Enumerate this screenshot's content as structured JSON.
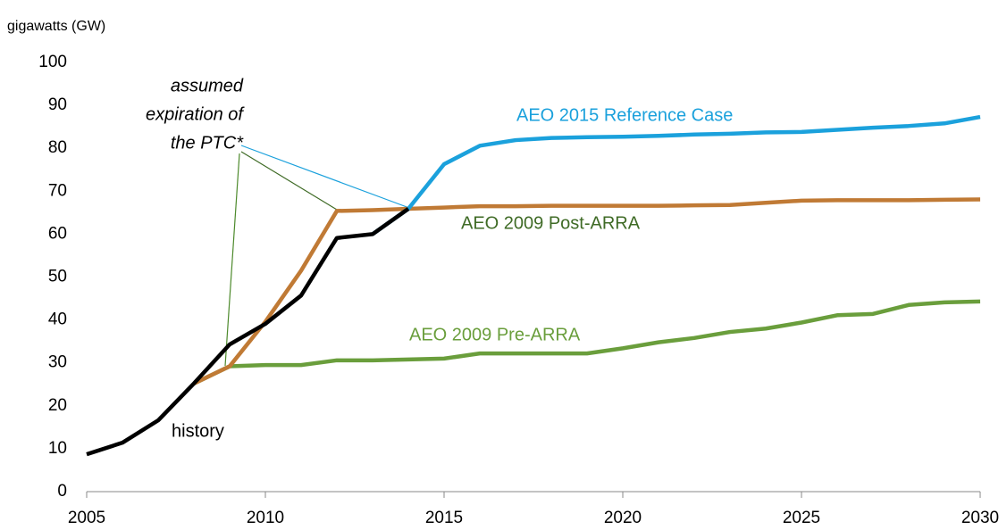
{
  "chart_data": {
    "type": "line",
    "y_axis_label": "gigawatts (GW)",
    "annotation": [
      "assumed",
      "expiration of",
      "the PTC*"
    ],
    "history_label": "history",
    "xlim": [
      2005,
      2030
    ],
    "xticks": [
      2005,
      2010,
      2015,
      2020,
      2025,
      2030
    ],
    "ylim": [
      0,
      100
    ],
    "yticks": [
      0,
      10,
      20,
      30,
      40,
      50,
      60,
      70,
      80,
      90,
      100
    ],
    "grid": false,
    "series": [
      {
        "name": "AEO 2009 Pre-ARRA",
        "color": "#6a9e3c",
        "x": [
          2008,
          2009,
          2010,
          2011,
          2012,
          2013,
          2014,
          2015,
          2016,
          2017,
          2018,
          2019,
          2020,
          2021,
          2022,
          2023,
          2024,
          2025,
          2026,
          2027,
          2028,
          2029,
          2030
        ],
        "values": [
          25.2,
          29.2,
          29.5,
          29.5,
          30.6,
          30.6,
          30.8,
          31.0,
          32.2,
          32.2,
          32.2,
          32.2,
          33.4,
          34.8,
          35.8,
          37.2,
          38.0,
          39.4,
          41.1,
          41.4,
          43.5,
          44.1,
          44.3
        ]
      },
      {
        "name": "AEO 2009 Post-ARRA",
        "color": "#c07a35",
        "x": [
          2008,
          2009,
          2010,
          2011,
          2012,
          2013,
          2014,
          2015,
          2016,
          2017,
          2018,
          2019,
          2020,
          2021,
          2022,
          2023,
          2024,
          2025,
          2026,
          2027,
          2028,
          2029,
          2030
        ],
        "values": [
          25.2,
          29.2,
          39.6,
          51.5,
          65.4,
          65.6,
          65.9,
          66.2,
          66.5,
          66.5,
          66.6,
          66.6,
          66.6,
          66.6,
          66.7,
          66.8,
          67.3,
          67.8,
          67.9,
          67.9,
          67.9,
          68.0,
          68.1
        ]
      },
      {
        "name": "AEO 2015 Reference Case",
        "color": "#1ba1dc",
        "x": [
          2013,
          2014,
          2015,
          2016,
          2017,
          2018,
          2019,
          2020,
          2021,
          2022,
          2023,
          2024,
          2025,
          2026,
          2027,
          2028,
          2029,
          2030
        ],
        "values": [
          60.0,
          65.9,
          76.3,
          80.6,
          81.9,
          82.4,
          82.6,
          82.7,
          82.9,
          83.2,
          83.4,
          83.7,
          83.8,
          84.3,
          84.8,
          85.2,
          85.8,
          87.3
        ]
      },
      {
        "name": "history",
        "color": "#000000",
        "x": [
          2005,
          2006,
          2007,
          2008,
          2009,
          2010,
          2011,
          2012,
          2013,
          2014
        ],
        "values": [
          8.7,
          11.4,
          16.6,
          25.2,
          34.3,
          39.1,
          45.7,
          59.1,
          60.0,
          65.9
        ]
      }
    ]
  }
}
